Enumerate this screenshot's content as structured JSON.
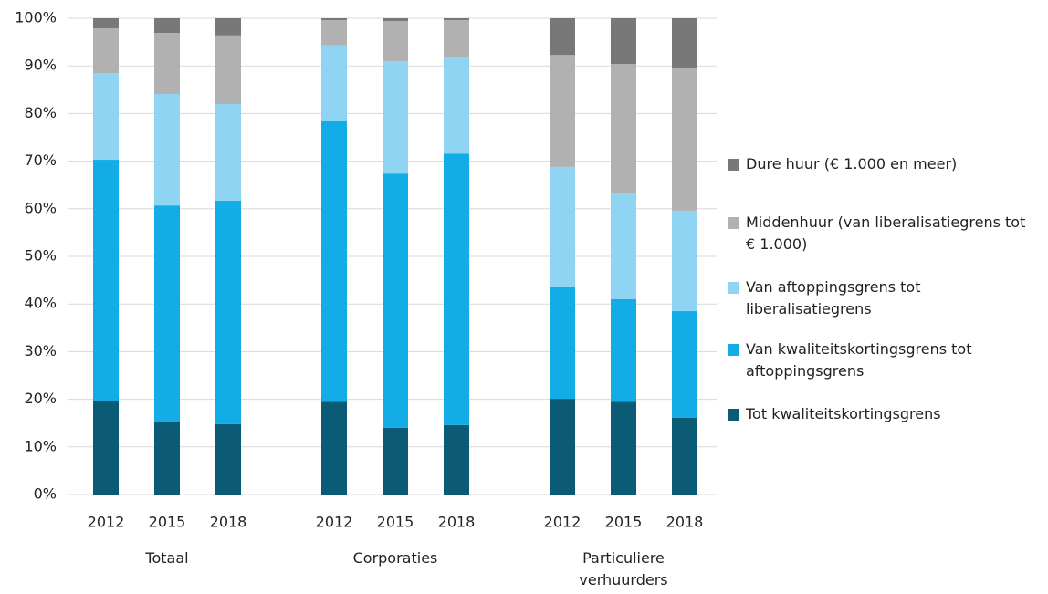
{
  "chart_data": {
    "type": "stacked-bar",
    "categories": [
      "2012",
      "2015",
      "2018",
      "2012",
      "2015",
      "2018",
      "2012",
      "2015",
      "2018"
    ],
    "groups": [
      "Totaal",
      "Corporaties",
      "Particuliere verhuurders"
    ],
    "series": [
      {
        "name": "Tot kwaliteitskortingsgrens",
        "color": "#0b5a76",
        "values": [
          19.7,
          15.3,
          14.8,
          19.5,
          14.0,
          14.6,
          20.1,
          19.5,
          16.1
        ]
      },
      {
        "name": "Van kwaliteitskortingsgrens tot aftoppingsgrens",
        "color": "#12ace6",
        "values": [
          50.6,
          45.4,
          46.9,
          58.9,
          53.4,
          57.0,
          23.6,
          21.5,
          22.4
        ]
      },
      {
        "name": "Van aftoppingsgrens tot liberalisatiegrens",
        "color": "#8fd4f2",
        "values": [
          18.2,
          23.4,
          20.3,
          15.9,
          23.6,
          20.2,
          25.1,
          22.4,
          21.1
        ]
      },
      {
        "name": "Middenhuur (van liberalisatiegrens tot € 1.000)",
        "color": "#b1b1b1",
        "values": [
          9.4,
          12.8,
          14.4,
          5.3,
          8.4,
          7.8,
          23.5,
          27.0,
          29.9
        ]
      },
      {
        "name": "Dure huur (€ 1.000 en meer)",
        "color": "#787878",
        "values": [
          2.1,
          3.1,
          3.6,
          0.4,
          0.6,
          0.4,
          7.7,
          9.6,
          10.5
        ]
      }
    ],
    "ylim": [
      0,
      100
    ],
    "yticks": [
      {
        "value": 0,
        "label": "0%"
      },
      {
        "value": 10,
        "label": "10%"
      },
      {
        "value": 20,
        "label": "20%"
      },
      {
        "value": 30,
        "label": "30%"
      },
      {
        "value": 40,
        "label": "40%"
      },
      {
        "value": 50,
        "label": "50%"
      },
      {
        "value": 60,
        "label": "60%"
      },
      {
        "value": 70,
        "label": "70%"
      },
      {
        "value": 80,
        "label": "80%"
      },
      {
        "value": 90,
        "label": "90%"
      },
      {
        "value": 100,
        "label": "100%"
      }
    ],
    "grid": true,
    "legend": "right"
  }
}
